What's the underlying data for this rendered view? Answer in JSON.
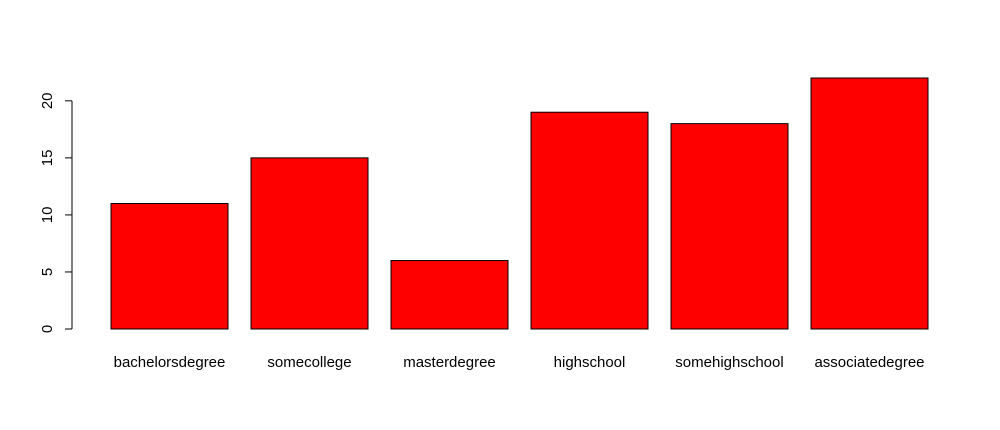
{
  "chart_data": {
    "type": "bar",
    "categories": [
      "bachelorsdegree",
      "somecollege",
      "masterdegree",
      "highschool",
      "somehighschool",
      "associatedegree"
    ],
    "values": [
      11,
      15,
      6,
      19,
      18,
      22
    ],
    "yticks": [
      0,
      5,
      10,
      15,
      20
    ],
    "ylim": [
      0,
      22
    ],
    "title": "",
    "xlabel": "",
    "ylabel": "",
    "grid": false,
    "bar_color": "#ff0000",
    "border_color": "#000000"
  }
}
